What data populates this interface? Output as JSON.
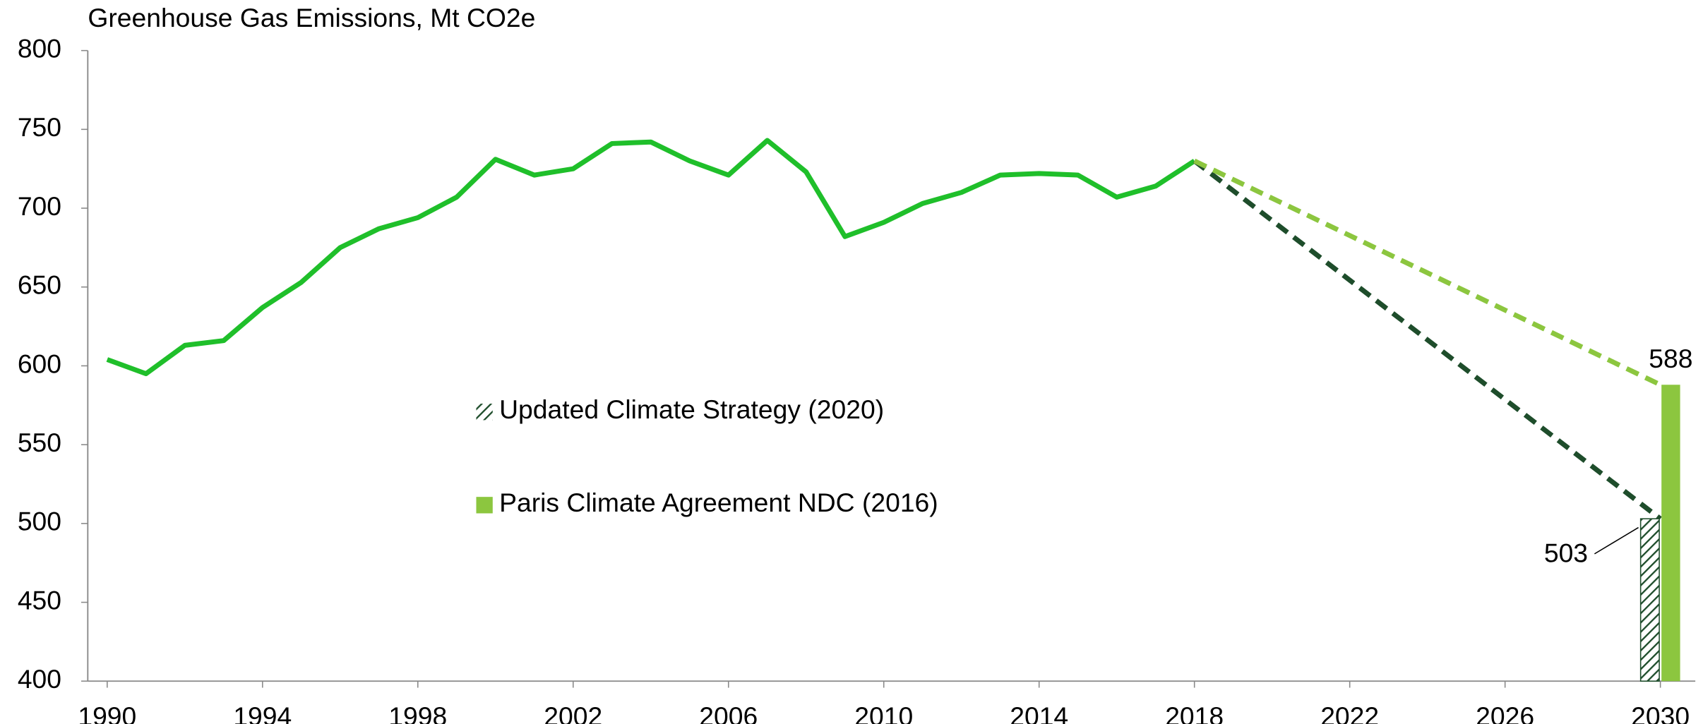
{
  "chart_data": {
    "type": "line",
    "title": "Greenhouse Gas Emissions, Mt CO2e",
    "x": [
      1990,
      1991,
      1992,
      1993,
      1994,
      1995,
      1996,
      1997,
      1998,
      1999,
      2000,
      2001,
      2002,
      2003,
      2004,
      2005,
      2006,
      2007,
      2008,
      2009,
      2010,
      2011,
      2012,
      2013,
      2014,
      2015,
      2016,
      2017,
      2018
    ],
    "series": [
      {
        "color": "#1fbf2a",
        "values": [
          604,
          595,
          613,
          616,
          637,
          653,
          675,
          687,
          694,
          707,
          731,
          721,
          725,
          741,
          742,
          730,
          721,
          743,
          723,
          682,
          691,
          703,
          710,
          721,
          722,
          721,
          707,
          714,
          730
        ]
      }
    ],
    "projections": [
      {
        "color": "#1e4d2b",
        "dashed": true,
        "x": [
          2018,
          2030
        ],
        "values": [
          730,
          503
        ]
      },
      {
        "color": "#8cc63f",
        "dashed": true,
        "x": [
          2018,
          2030
        ],
        "values": [
          730,
          588
        ]
      }
    ],
    "bars": [
      {
        "name": "Updated Climate Strategy (2020)",
        "color": "#1e4d2b",
        "pattern": "hatch",
        "x": 2030,
        "value": 503
      },
      {
        "name": "Paris Climate Agreement NDC (2016)",
        "color": "#8cc63f",
        "x": 2030,
        "value": 588
      }
    ],
    "xlim": [
      1989.5,
      2030.9
    ],
    "xticks": [
      1990,
      1994,
      1998,
      2002,
      2006,
      2010,
      2014,
      2018,
      2022,
      2026,
      2030
    ],
    "ylim": [
      400,
      800
    ],
    "yticks": [
      400,
      450,
      500,
      550,
      600,
      650,
      700,
      750,
      800
    ]
  }
}
